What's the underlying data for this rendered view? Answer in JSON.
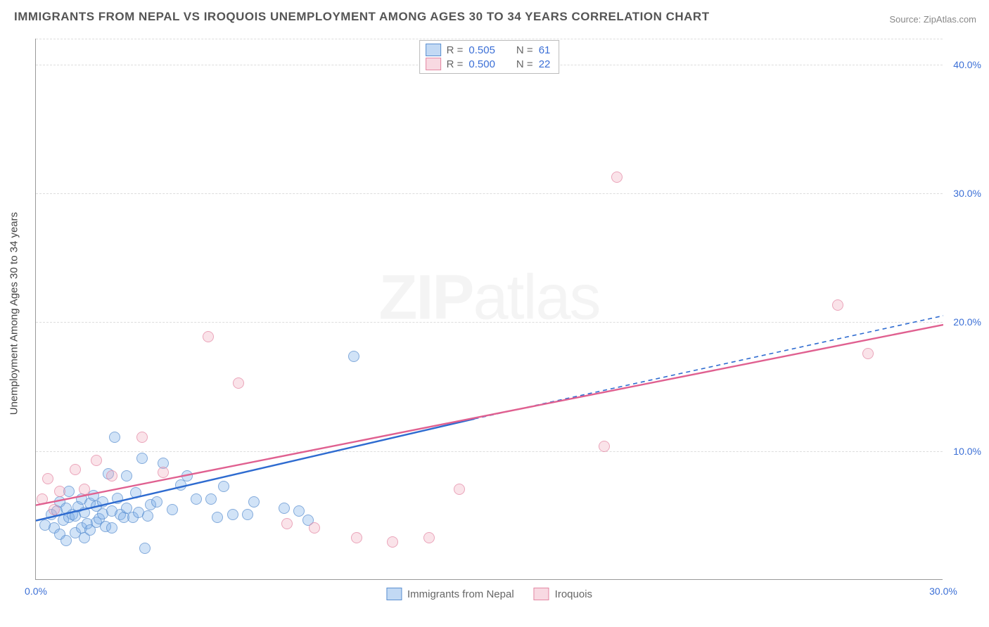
{
  "title": "IMMIGRANTS FROM NEPAL VS IROQUOIS UNEMPLOYMENT AMONG AGES 30 TO 34 YEARS CORRELATION CHART",
  "source": "Source: ZipAtlas.com",
  "ylabel": "Unemployment Among Ages 30 to 34 years",
  "watermark_a": "ZIP",
  "watermark_b": "atlas",
  "chart": {
    "type": "scatter",
    "xlim": [
      0,
      30
    ],
    "ylim": [
      0,
      42
    ],
    "xticks": [
      {
        "v": 0,
        "label": "0.0%"
      },
      {
        "v": 30,
        "label": "30.0%"
      }
    ],
    "yticks": [
      {
        "v": 10,
        "label": "10.0%"
      },
      {
        "v": 20,
        "label": "20.0%"
      },
      {
        "v": 30,
        "label": "30.0%"
      },
      {
        "v": 40,
        "label": "40.0%"
      }
    ],
    "gridlines_y": [
      10,
      20,
      30,
      40,
      42
    ],
    "background_color": "#ffffff",
    "grid_color": "#dddddd",
    "marker_size": 16
  },
  "series": [
    {
      "id": "a",
      "name": "Immigrants from Nepal",
      "color_fill": "rgba(120,170,230,0.45)",
      "color_border": "#5a8fd0",
      "r": "0.505",
      "n": "61",
      "trend": {
        "x1": 0,
        "y1": 4.6,
        "x2": 14.5,
        "y2": 12.5,
        "x2_ext": 30,
        "y2_ext": 20.5,
        "color": "#2e6bd0",
        "width": 2.4
      },
      "points": [
        [
          0.3,
          4.2
        ],
        [
          0.5,
          5.0
        ],
        [
          0.6,
          4.0
        ],
        [
          0.7,
          5.3
        ],
        [
          0.8,
          3.5
        ],
        [
          0.8,
          6.0
        ],
        [
          0.9,
          4.6
        ],
        [
          1.0,
          5.5
        ],
        [
          1.0,
          3.0
        ],
        [
          1.1,
          6.8
        ],
        [
          1.1,
          4.8
        ],
        [
          1.2,
          5.0
        ],
        [
          1.3,
          3.6
        ],
        [
          1.3,
          4.9
        ],
        [
          1.4,
          5.6
        ],
        [
          1.5,
          4.0
        ],
        [
          1.5,
          6.2
        ],
        [
          1.6,
          5.2
        ],
        [
          1.6,
          3.2
        ],
        [
          1.7,
          4.3
        ],
        [
          1.8,
          5.9
        ],
        [
          1.8,
          3.8
        ],
        [
          1.9,
          6.5
        ],
        [
          2.0,
          4.4
        ],
        [
          2.0,
          5.7
        ],
        [
          2.1,
          4.7
        ],
        [
          2.2,
          5.1
        ],
        [
          2.2,
          6.0
        ],
        [
          2.3,
          4.1
        ],
        [
          2.4,
          8.2
        ],
        [
          2.5,
          5.3
        ],
        [
          2.5,
          4.0
        ],
        [
          2.6,
          11.0
        ],
        [
          2.7,
          6.3
        ],
        [
          2.8,
          5.0
        ],
        [
          2.9,
          4.8
        ],
        [
          3.0,
          8.0
        ],
        [
          3.0,
          5.5
        ],
        [
          3.2,
          4.8
        ],
        [
          3.3,
          6.7
        ],
        [
          3.4,
          5.2
        ],
        [
          3.5,
          9.4
        ],
        [
          3.6,
          2.4
        ],
        [
          3.7,
          4.9
        ],
        [
          3.8,
          5.8
        ],
        [
          4.0,
          6.0
        ],
        [
          4.2,
          9.0
        ],
        [
          4.5,
          5.4
        ],
        [
          4.8,
          7.3
        ],
        [
          5.0,
          8.0
        ],
        [
          5.3,
          6.2
        ],
        [
          5.8,
          6.2
        ],
        [
          6.0,
          4.8
        ],
        [
          6.2,
          7.2
        ],
        [
          6.5,
          5.0
        ],
        [
          7.0,
          5.0
        ],
        [
          7.2,
          6.0
        ],
        [
          8.2,
          5.5
        ],
        [
          8.7,
          5.3
        ],
        [
          9.0,
          4.6
        ],
        [
          10.5,
          17.3
        ]
      ]
    },
    {
      "id": "b",
      "name": "Iroquois",
      "color_fill": "rgba(240,170,190,0.45)",
      "color_border": "#e487a3",
      "r": "0.500",
      "n": "22",
      "trend": {
        "x1": 0,
        "y1": 5.8,
        "x2": 30,
        "y2": 19.8,
        "color": "#e06090",
        "width": 2.4
      },
      "points": [
        [
          0.2,
          6.2
        ],
        [
          0.4,
          7.8
        ],
        [
          0.6,
          5.4
        ],
        [
          0.8,
          6.8
        ],
        [
          1.3,
          8.5
        ],
        [
          1.6,
          7.0
        ],
        [
          2.0,
          9.2
        ],
        [
          2.5,
          8.0
        ],
        [
          3.5,
          11.0
        ],
        [
          4.2,
          8.3
        ],
        [
          5.7,
          18.8
        ],
        [
          6.7,
          15.2
        ],
        [
          8.3,
          4.3
        ],
        [
          9.2,
          4.0
        ],
        [
          10.6,
          3.2
        ],
        [
          11.8,
          2.9
        ],
        [
          13.0,
          3.2
        ],
        [
          14.0,
          7.0
        ],
        [
          18.8,
          10.3
        ],
        [
          19.2,
          31.2
        ],
        [
          26.5,
          21.3
        ],
        [
          27.5,
          17.5
        ]
      ]
    }
  ],
  "legend_stats_label_r": "R =",
  "legend_stats_label_n": "N ="
}
